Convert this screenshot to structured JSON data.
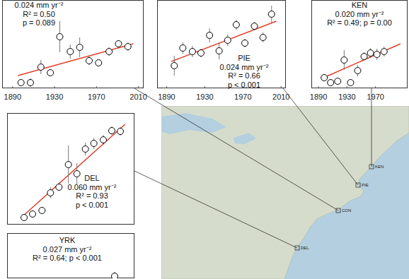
{
  "chart_data": [
    {
      "type": "scatter",
      "annotations": [
        "0.024 mm yr⁻²",
        "R² = 0.50",
        "p = 0.089"
      ],
      "x": [
        1898,
        1907,
        1917,
        1926,
        1935,
        1945,
        1954,
        1963,
        1972,
        1982,
        1991,
        2000
      ],
      "xlim": [
        1880,
        2015
      ],
      "ylim": [
        0,
        12.5
      ],
      "xticks": [
        1890,
        1930,
        1970,
        2010
      ],
      "tick_labels": "x",
      "series": [
        {
          "type": "scatter",
          "marker": "circle",
          "color": "#000000",
          "values": [
            0.8,
            0.8,
            3.0,
            2.2,
            7.3,
            5.2,
            5.8,
            3.9,
            3.6,
            5.2,
            6.3,
            5.9
          ],
          "errors": [
            0.5,
            0.6,
            1.0,
            0.5,
            2.2,
            1.0,
            1.4,
            0.6,
            0.5,
            0.6,
            0.5,
            0.6
          ]
        },
        {
          "type": "line",
          "color": "#e0402a",
          "x": [
            1895,
            2005
          ],
          "values": [
            1.8,
            6.3
          ]
        }
      ]
    },
    {
      "type": "scatter",
      "title": "PIE",
      "annotations": [
        "0.024 mm yr⁻²",
        "R² = 0.66",
        "p < 0.001"
      ],
      "x": [
        1898,
        1907,
        1917,
        1926,
        1935,
        1945,
        1954,
        1963,
        1972,
        1982,
        1991,
        2000
      ],
      "xlim": [
        1880,
        2015
      ],
      "ylim": [
        0,
        12.5
      ],
      "xticks": [
        1890,
        1930,
        1970,
        2010
      ],
      "tick_labels": "x",
      "series": [
        {
          "type": "scatter",
          "marker": "circle",
          "color": "#000000",
          "values": [
            3.2,
            5.7,
            5.2,
            5.0,
            7.5,
            5.3,
            6.8,
            9.0,
            6.4,
            8.8,
            7.2,
            10.5
          ],
          "errors": [
            1.4,
            0.8,
            0.8,
            0.6,
            1.0,
            1.2,
            0.8,
            0.7,
            0.6,
            0.6,
            0.7,
            1.2
          ]
        },
        {
          "type": "line",
          "color": "#e0402a",
          "x": [
            1895,
            2005
          ],
          "values": [
            3.8,
            9.5
          ]
        }
      ]
    },
    {
      "type": "scatter",
      "title": "KEN",
      "annotations": [
        "0.020 mm yr⁻²",
        "R² = 0.49; p = 0.00"
      ],
      "x": [
        1898,
        1907,
        1917,
        1926,
        1935,
        1945,
        1954,
        1963,
        1972,
        1982
      ],
      "xlim": [
        1880,
        2015
      ],
      "ylim": [
        0,
        12.5
      ],
      "xticks": [
        1890,
        1930,
        1970
      ],
      "tick_labels": "x",
      "series": [
        {
          "type": "scatter",
          "marker": "circle",
          "color": "#000000",
          "values": [
            1.5,
            0.8,
            1.0,
            4.0,
            0.8,
            2.5,
            4.5,
            5.0,
            4.8,
            5.2
          ],
          "errors": [
            0.4,
            0.4,
            0.4,
            1.4,
            0.4,
            0.8,
            0.6,
            0.7,
            0.8,
            0.7
          ]
        },
        {
          "type": "line",
          "color": "#e0402a",
          "x": [
            1895,
            2005
          ],
          "values": [
            1.4,
            6.3
          ]
        }
      ]
    },
    {
      "type": "scatter",
      "title": "DEL",
      "annotations": [
        "0.060 mm yr⁻²",
        "R² = 0.93",
        "p < 0.001"
      ],
      "x": [
        1898,
        1907,
        1917,
        1926,
        1935,
        1945,
        1954,
        1963,
        1972,
        1982,
        1991,
        2000
      ],
      "xlim": [
        1880,
        2015
      ],
      "ylim": [
        0,
        15.8
      ],
      "tick_labels": false,
      "series": [
        {
          "type": "scatter",
          "marker": "circle",
          "color": "#000000",
          "values": [
            1.0,
            1.5,
            2.0,
            4.5,
            5.3,
            8.5,
            7.2,
            10.7,
            11.5,
            12.0,
            13.3,
            13.2
          ],
          "errors": [
            0.3,
            0.4,
            0.5,
            0.8,
            0.5,
            2.7,
            1.5,
            0.9,
            0.8,
            0.7,
            0.6,
            0.6
          ]
        },
        {
          "type": "line",
          "color": "#e0402a",
          "x": [
            1895,
            2005
          ],
          "values": [
            1.0,
            14.2
          ]
        }
      ]
    },
    {
      "type": "scatter",
      "title": "YRK",
      "annotations": [
        "0.027 mm yr⁻²",
        "R² = 0.64; p < 0.001"
      ],
      "x": [
        1994
      ],
      "xlim": [
        1880,
        2015
      ],
      "ylim": [
        0,
        6.4
      ],
      "tick_labels": false,
      "series": [
        {
          "type": "scatter",
          "marker": "circle",
          "color": "#000000",
          "values": [
            0.3
          ],
          "errors": [
            0.6
          ]
        }
      ]
    }
  ],
  "map": {
    "sites": [
      {
        "label": "KEN"
      },
      {
        "label": "PIE"
      },
      {
        "label": "CON"
      },
      {
        "label": "DEL"
      }
    ]
  }
}
